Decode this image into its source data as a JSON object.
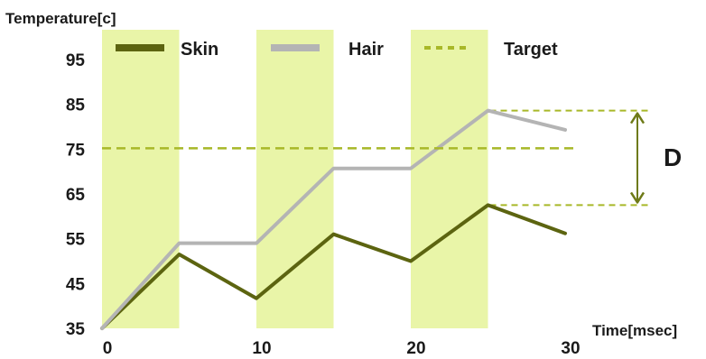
{
  "chart_data": {
    "type": "line",
    "ylabel": "Temperature[c]",
    "xlabel": "Time[msec]",
    "xlim": [
      0,
      30
    ],
    "ylim": [
      35,
      95
    ],
    "x_ticks": [
      0,
      10,
      20,
      30
    ],
    "y_ticks": [
      35,
      45,
      55,
      65,
      75,
      85,
      95
    ],
    "highlight_bands": [
      [
        0,
        5
      ],
      [
        10,
        15
      ],
      [
        20,
        25
      ]
    ],
    "series": [
      {
        "name": "Skin",
        "style": "solid",
        "color": "#5c6410",
        "points": [
          [
            0,
            35
          ],
          [
            5,
            51.5
          ],
          [
            10,
            41.7
          ],
          [
            15,
            56
          ],
          [
            20,
            50
          ],
          [
            25,
            62.5
          ],
          [
            30,
            56.2
          ]
        ]
      },
      {
        "name": "Hair",
        "style": "solid",
        "color": "#b4b4b4",
        "points": [
          [
            0,
            35
          ],
          [
            5,
            54
          ],
          [
            10,
            54
          ],
          [
            15,
            70.7
          ],
          [
            20,
            70.7
          ],
          [
            25,
            83.6
          ],
          [
            30,
            79.3
          ]
        ]
      },
      {
        "name": "Target",
        "style": "dashed",
        "color": "#a8b828",
        "points": [
          [
            0,
            75.2
          ],
          [
            30,
            75.2
          ]
        ]
      }
    ],
    "annotation": {
      "label": "D",
      "from_y": 62.5,
      "to_y": 83.6
    }
  },
  "colors": {
    "band": "#e9f5a8",
    "skin": "#5c6410",
    "hair": "#b4b4b4",
    "target": "#a8b828",
    "arrow": "#6e7a18"
  }
}
